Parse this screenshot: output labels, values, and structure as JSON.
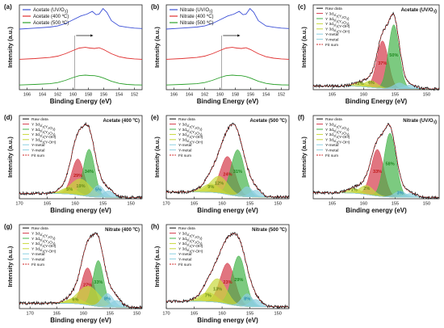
{
  "figure_colors": {
    "blue": "#3b4fd6",
    "red": "#e03030",
    "green": "#2ca02c",
    "black": "#111111",
    "y32_fill": "#d43a4a",
    "y52_fill": "#45b34a",
    "yoh_fill": "#c8d83a",
    "metal_fill": "#8ccfe0",
    "fitsum": "#cc2222"
  },
  "chart_data": [
    {
      "panel": "(a)",
      "type": "line",
      "xlabel": "Binding Energy (eV)",
      "ylabel": "Intensity (a.u.)",
      "xlim": [
        167,
        151
      ],
      "xticks": [
        166,
        164,
        162,
        160,
        158,
        156,
        154,
        152
      ],
      "legend": "top-left",
      "series": [
        {
          "name": "Acetate (UV/O₃)",
          "color": "#3b4fd6",
          "offset": 3.0,
          "x": [
            167,
            165,
            163,
            162,
            161,
            160,
            159,
            158.2,
            157.5,
            157,
            156.6,
            156.1,
            155.6,
            155,
            154,
            153,
            152,
            151
          ],
          "y": [
            0.25,
            0.3,
            0.36,
            0.42,
            0.55,
            0.75,
            0.95,
            1.05,
            1.2,
            1.02,
            1.05,
            1.35,
            1.15,
            0.7,
            0.42,
            0.35,
            0.3,
            0.28
          ]
        },
        {
          "name": "Acetate (400 ºC)",
          "color": "#e03030",
          "offset": 1.55,
          "x": [
            167,
            165,
            163,
            162,
            161,
            160,
            159.2,
            158.4,
            157.8,
            157.2,
            156.6,
            156,
            155,
            154,
            153,
            152,
            151
          ],
          "y": [
            0.08,
            0.12,
            0.18,
            0.25,
            0.38,
            0.55,
            0.68,
            0.72,
            0.68,
            0.66,
            0.7,
            0.6,
            0.38,
            0.22,
            0.14,
            0.1,
            0.08
          ]
        },
        {
          "name": "Acetate (500 ºC)",
          "color": "#2ca02c",
          "offset": 0.2,
          "x": [
            167,
            165,
            163,
            162,
            161,
            160,
            159.2,
            158.4,
            157.8,
            157.2,
            156.6,
            156,
            155,
            154,
            153,
            152,
            151
          ],
          "y": [
            0.05,
            0.08,
            0.12,
            0.18,
            0.3,
            0.45,
            0.55,
            0.58,
            0.56,
            0.55,
            0.5,
            0.42,
            0.25,
            0.14,
            0.08,
            0.06,
            0.05
          ]
        }
      ]
    },
    {
      "panel": "(b)",
      "type": "line",
      "xlabel": "Binding Energy (eV)",
      "ylabel": "Intensity (a.u.)",
      "xlim": [
        167,
        151
      ],
      "xticks": [
        166,
        164,
        162,
        160,
        158,
        156,
        154,
        152
      ],
      "legend": "top-left",
      "series": [
        {
          "name": "Nitrate (UV/O₃)",
          "color": "#3b4fd6",
          "offset": 3.0,
          "x": [
            167,
            165,
            163,
            162,
            161,
            160,
            159,
            158.2,
            157.5,
            157,
            156.6,
            156.1,
            155.6,
            155,
            154,
            153,
            152,
            151
          ],
          "y": [
            0.25,
            0.3,
            0.36,
            0.42,
            0.55,
            0.75,
            0.95,
            1.05,
            1.2,
            1.02,
            1.05,
            1.35,
            1.15,
            0.7,
            0.42,
            0.35,
            0.3,
            0.28
          ]
        },
        {
          "name": "Nitrate (400 ºC)",
          "color": "#e03030",
          "offset": 1.55,
          "x": [
            167,
            165,
            163,
            162,
            161,
            160,
            159.2,
            158.4,
            157.8,
            157.2,
            156.6,
            156,
            155,
            154,
            153,
            152,
            151
          ],
          "y": [
            0.08,
            0.12,
            0.18,
            0.25,
            0.38,
            0.55,
            0.68,
            0.72,
            0.68,
            0.66,
            0.7,
            0.6,
            0.38,
            0.22,
            0.14,
            0.1,
            0.08
          ]
        },
        {
          "name": "Nitrate (500 ºC)",
          "color": "#2ca02c",
          "offset": 0.2,
          "x": [
            167,
            165,
            163,
            162,
            161,
            160,
            159.2,
            158.4,
            157.8,
            157.2,
            156.6,
            156,
            155,
            154,
            153,
            152,
            151
          ],
          "y": [
            0.05,
            0.08,
            0.12,
            0.18,
            0.3,
            0.45,
            0.55,
            0.58,
            0.56,
            0.55,
            0.5,
            0.42,
            0.25,
            0.14,
            0.08,
            0.06,
            0.05
          ]
        }
      ]
    },
    {
      "panel": "(c)",
      "type": "area",
      "condition": "Acetate (UV/O₃)",
      "xlabel": "Binding Energy (eV)",
      "ylabel": "Intensity (a.u.)",
      "xlim": [
        168,
        148
      ],
      "xticks": [
        165,
        160,
        155,
        150
      ],
      "legend": "top-left",
      "components": [
        {
          "name": "Y 3d₃/₂(Y₂O₃)",
          "center": 157.0,
          "amp": 1.0,
          "sigma": 0.9,
          "color": "#d43a4a",
          "percent": "37%"
        },
        {
          "name": "Y 3d₅/₂(Y₂O₃)",
          "center": 155.2,
          "amp": 1.35,
          "sigma": 0.85,
          "color": "#45b34a",
          "percent": "50%"
        },
        {
          "name": "Y 3d₃/₂(Y-OH)",
          "center": 158.8,
          "amp": 0.14,
          "sigma": 1.0,
          "color": "#c8d83a",
          "percent": "4%"
        },
        {
          "name": "Y 3d₅/₂(Y-OH)",
          "center": 160.5,
          "amp": 0.08,
          "sigma": 1.1,
          "color": "#c8d83a",
          "percent": "2%"
        },
        {
          "name": "Y-metal",
          "center": 154.3,
          "amp": 0.12,
          "sigma": 0.9,
          "color": "#8ccfe0",
          "percent": ""
        },
        {
          "name": "Y-metal",
          "center": 152.6,
          "amp": 0.08,
          "sigma": 0.9,
          "color": "#8ccfe0",
          "percent": ""
        }
      ]
    },
    {
      "panel": "(d)",
      "type": "area",
      "condition": "Acetate (400 ºC)",
      "xlabel": "Binding energy (eV)",
      "ylabel": "Intensity (a.u.)",
      "xlim": [
        170,
        148
      ],
      "xticks": [
        170,
        165,
        160,
        155,
        150
      ],
      "legend": "top-left",
      "components": [
        {
          "name": "Y 3d₃/₂(Y₂O₃)",
          "center": 159.5,
          "amp": 0.55,
          "sigma": 1.1,
          "color": "#d43a4a",
          "percent": "29%"
        },
        {
          "name": "Y 3d₅/₂(Y₂O₃)",
          "center": 157.5,
          "amp": 0.72,
          "sigma": 1.0,
          "color": "#45b34a",
          "percent": "34%"
        },
        {
          "name": "Y 3d₃/₂(Y-OH)",
          "center": 161.0,
          "amp": 0.1,
          "sigma": 1.4,
          "color": "#c8d83a",
          "percent": "5%"
        },
        {
          "name": "Y 3d₅/₂(Y-OH)",
          "center": 159.0,
          "amp": 0.25,
          "sigma": 1.8,
          "color": "#c8d83a",
          "percent": "19%"
        },
        {
          "name": "Y-metal",
          "center": 155.8,
          "amp": 0.18,
          "sigma": 1.0,
          "color": "#8ccfe0",
          "percent": "5%"
        },
        {
          "name": "Y-metal",
          "center": 154.0,
          "amp": 0.1,
          "sigma": 1.0,
          "color": "#8ccfe0",
          "percent": ""
        }
      ]
    },
    {
      "panel": "(e)",
      "type": "area",
      "condition": "Acetate (500 ºC)",
      "xlabel": "Binding energy (eV)",
      "ylabel": "Intensity (a.u.)",
      "xlim": [
        170,
        148
      ],
      "xticks": [
        170,
        165,
        160,
        155,
        150
      ],
      "legend": "top-left",
      "components": [
        {
          "name": "Y 3d₃/₂(Y₂O₃)",
          "center": 159.0,
          "amp": 0.45,
          "sigma": 1.3,
          "color": "#d43a4a",
          "percent": "24%"
        },
        {
          "name": "Y 3d₅/₂(Y₂O₃)",
          "center": 157.2,
          "amp": 0.55,
          "sigma": 1.2,
          "color": "#45b34a",
          "percent": "31%"
        },
        {
          "name": "Y 3d₃/₂(Y-OH)",
          "center": 160.5,
          "amp": 0.2,
          "sigma": 1.6,
          "color": "#c8d83a",
          "percent": "12%"
        },
        {
          "name": "Y 3d₅/₂(Y-OH)",
          "center": 162.0,
          "amp": 0.1,
          "sigma": 1.5,
          "color": "#c8d83a",
          "percent": "9%"
        },
        {
          "name": "Y-metal",
          "center": 155.5,
          "amp": 0.12,
          "sigma": 1.0,
          "color": "#8ccfe0",
          "percent": ""
        },
        {
          "name": "Y-metal",
          "center": 154.0,
          "amp": 0.08,
          "sigma": 1.0,
          "color": "#8ccfe0",
          "percent": ""
        }
      ]
    },
    {
      "panel": "(f)",
      "type": "area",
      "condition": "Nitrate (UV/O₃)",
      "xlabel": "Binding energy (eV)",
      "ylabel": "Intensity (a.u.)",
      "xlim": [
        168,
        148
      ],
      "xticks": [
        165,
        160,
        155,
        150
      ],
      "legend": "top-left",
      "components": [
        {
          "name": "Y 3d₃/₂(Y₂O₃)",
          "center": 157.8,
          "amp": 0.62,
          "sigma": 1.0,
          "color": "#d43a4a",
          "percent": "33%"
        },
        {
          "name": "Y 3d₅/₂(Y₂O₃)",
          "center": 155.8,
          "amp": 0.85,
          "sigma": 0.95,
          "color": "#45b34a",
          "percent": "58%"
        },
        {
          "name": "Y 3d₃/₂(Y-OH)",
          "center": 159.5,
          "amp": 0.12,
          "sigma": 1.1,
          "color": "#c8d83a",
          "percent": "2%"
        },
        {
          "name": "Y 3d₅/₂(Y-OH)",
          "center": 161.5,
          "amp": 0.06,
          "sigma": 1.1,
          "color": "#c8d83a",
          "percent": "1%"
        },
        {
          "name": "Y-metal",
          "center": 154.2,
          "amp": 0.08,
          "sigma": 0.9,
          "color": "#8ccfe0",
          "percent": "3%"
        },
        {
          "name": "Y-metal",
          "center": 152.5,
          "amp": 0.05,
          "sigma": 0.9,
          "color": "#8ccfe0",
          "percent": ""
        }
      ]
    },
    {
      "panel": "(g)",
      "type": "area",
      "condition": "Nitrate (400 ºC)",
      "xlabel": "Binding energy (eV)",
      "ylabel": "Intensity (a.u.)",
      "xlim": [
        172,
        149
      ],
      "xticks": [
        170,
        165,
        160,
        155,
        150
      ],
      "legend": "top-left",
      "components": [
        {
          "name": "Y 3d₃/₂(Y₂O₃)",
          "center": 159.2,
          "amp": 0.55,
          "sigma": 1.1,
          "color": "#d43a4a",
          "percent": "27%"
        },
        {
          "name": "Y 3d₅/₂(Y₂O₃)",
          "center": 157.2,
          "amp": 0.68,
          "sigma": 1.0,
          "color": "#45b34a",
          "percent": "33%"
        },
        {
          "name": "Y 3d₃/₂(Y-OH)",
          "center": 161.5,
          "amp": 0.08,
          "sigma": 1.5,
          "color": "#c8d83a",
          "percent": "6%"
        },
        {
          "name": "Y 3d₅/₂(Y-OH)",
          "center": 159.0,
          "amp": 0.28,
          "sigma": 2.0,
          "color": "#c8d83a",
          "percent": ""
        },
        {
          "name": "Y-metal",
          "center": 155.5,
          "amp": 0.2,
          "sigma": 1.1,
          "color": "#8ccfe0",
          "percent": "8%"
        },
        {
          "name": "Y-metal",
          "center": 153.8,
          "amp": 0.1,
          "sigma": 1.0,
          "color": "#8ccfe0",
          "percent": ""
        }
      ]
    },
    {
      "panel": "(h)",
      "type": "area",
      "condition": "Nitrate (500 ºC)",
      "xlabel": "Binding energy (eV)",
      "ylabel": "Intensity (a.u.)",
      "xlim": [
        170,
        148
      ],
      "xticks": [
        170,
        165,
        160,
        155,
        150
      ],
      "legend": "top-left",
      "components": [
        {
          "name": "Y 3d₃/₂(Y₂O₃)",
          "center": 159.0,
          "amp": 0.45,
          "sigma": 1.3,
          "color": "#d43a4a",
          "percent": "23%"
        },
        {
          "name": "Y 3d₅/₂(Y₂O₃)",
          "center": 157.0,
          "amp": 0.55,
          "sigma": 1.2,
          "color": "#45b34a",
          "percent": "29%"
        },
        {
          "name": "Y 3d₃/₂(Y-OH)",
          "center": 160.8,
          "amp": 0.26,
          "sigma": 1.6,
          "color": "#c8d83a",
          "percent": "13%"
        },
        {
          "name": "Y 3d₅/₂(Y-OH)",
          "center": 162.5,
          "amp": 0.1,
          "sigma": 1.5,
          "color": "#c8d83a",
          "percent": "7%"
        },
        {
          "name": "Y-metal",
          "center": 155.5,
          "amp": 0.14,
          "sigma": 1.0,
          "color": "#8ccfe0",
          "percent": "8%"
        },
        {
          "name": "Y-metal",
          "center": 154.0,
          "amp": 0.08,
          "sigma": 1.0,
          "color": "#8ccfe0",
          "percent": ""
        }
      ]
    }
  ],
  "fit_legend": {
    "raw": "Raw data",
    "fit": "Fit sum"
  }
}
